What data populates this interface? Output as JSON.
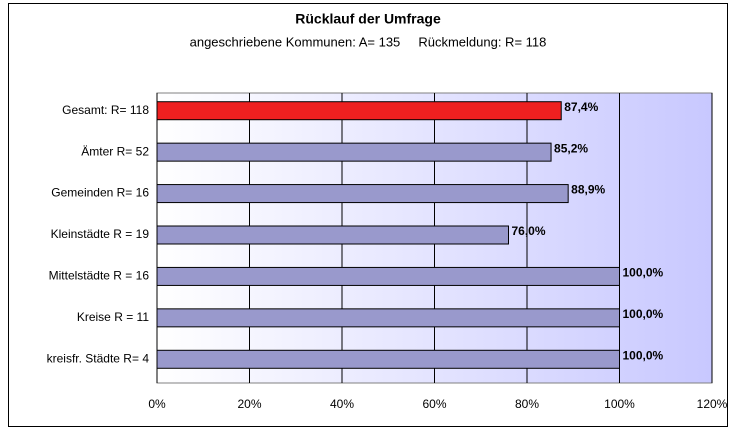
{
  "chart_data": {
    "type": "barh",
    "title": "Rücklauf der Umfrage",
    "subtitle": "angeschriebene Kommunen: A= 135     Rückmeldung: R= 118",
    "categories": [
      "Gesamt: R= 118",
      "Ämter R= 52",
      "Gemeinden R= 16",
      "Kleinstädte R = 19",
      "Mittelstädte R = 16",
      "Kreise R = 11",
      "kreisfr. Städte R= 4"
    ],
    "values": [
      87.4,
      85.2,
      88.9,
      76.0,
      100,
      100,
      100
    ],
    "value_labels": [
      "87,4%",
      "85,2%",
      "88,9%",
      "76,0%",
      "100,0%",
      "100,0%",
      "100,0%"
    ],
    "colors": [
      "#ee2020",
      "#9999cc",
      "#9999cc",
      "#9999cc",
      "#9999cc",
      "#9999cc",
      "#9999cc"
    ],
    "xlim": [
      0,
      120
    ],
    "xticks": [
      {
        "value": 0,
        "label": "0%"
      },
      {
        "value": 20,
        "label": "20%"
      },
      {
        "value": 40,
        "label": "40%"
      },
      {
        "value": 60,
        "label": "60%"
      },
      {
        "value": 80,
        "label": "80%"
      },
      {
        "value": 100,
        "label": "100%"
      },
      {
        "value": 120,
        "label": "120%"
      }
    ],
    "grid": true
  }
}
